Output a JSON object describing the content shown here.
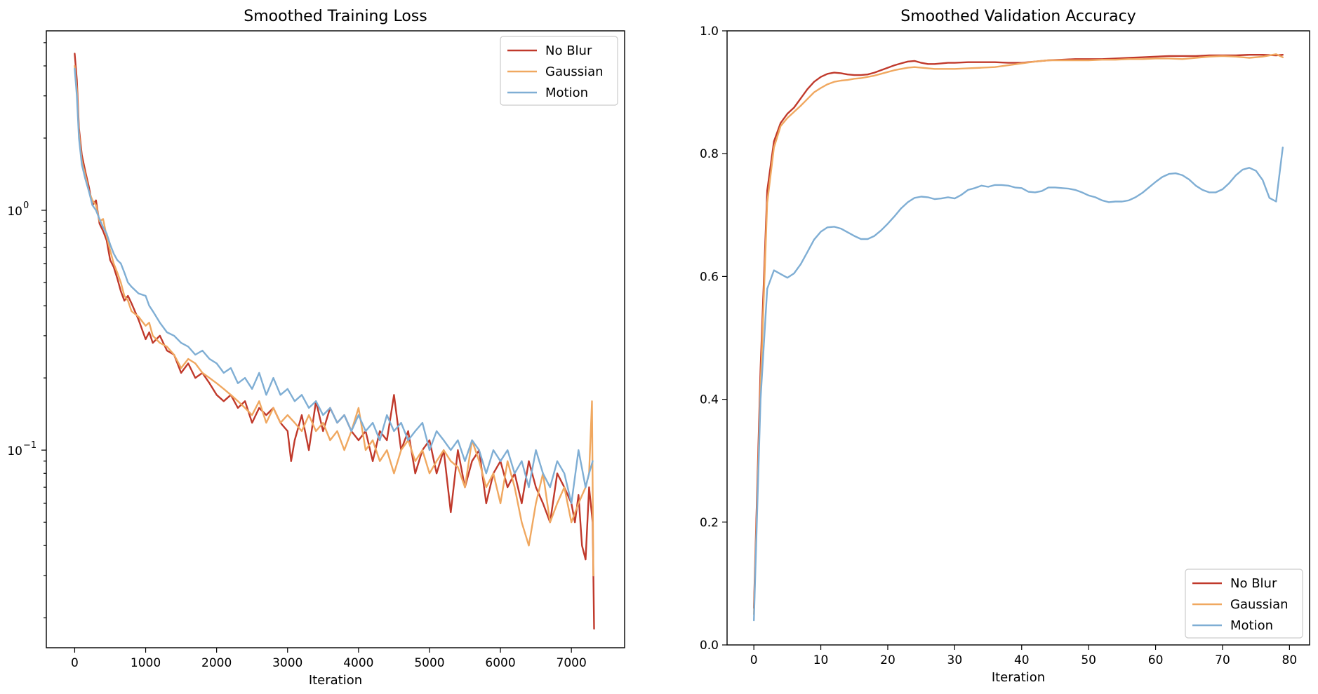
{
  "chart_data": [
    {
      "type": "line",
      "title": "Smoothed Training Loss",
      "xlabel": "Iteration",
      "ylabel": "",
      "xlim": [
        -400,
        7750
      ],
      "ylim": [
        0.015,
        5.6
      ],
      "yscale": "log",
      "grid": false,
      "legend_loc": "upper right",
      "xticks": [
        0,
        1000,
        2000,
        3000,
        4000,
        5000,
        6000,
        7000
      ],
      "xtick_labels": [
        "0",
        "1000",
        "2000",
        "3000",
        "4000",
        "5000",
        "6000",
        "7000"
      ],
      "yticks": [
        {
          "value": 1,
          "base": "10",
          "exp": "0"
        },
        {
          "value": 0.1,
          "base": "10",
          "exp": "−1"
        }
      ],
      "series": [
        {
          "name": "No Blur",
          "color": "#c0392b",
          "x": [
            0,
            30,
            60,
            100,
            150,
            200,
            250,
            300,
            350,
            400,
            450,
            500,
            550,
            600,
            650,
            700,
            750,
            800,
            900,
            1000,
            1050,
            1100,
            1200,
            1300,
            1400,
            1500,
            1600,
            1700,
            1800,
            1900,
            2000,
            2100,
            2200,
            2300,
            2400,
            2500,
            2600,
            2700,
            2800,
            2900,
            3000,
            3050,
            3100,
            3200,
            3300,
            3400,
            3500,
            3600,
            3700,
            3800,
            3900,
            4000,
            4100,
            4200,
            4300,
            4400,
            4500,
            4600,
            4700,
            4800,
            4900,
            5000,
            5100,
            5200,
            5300,
            5400,
            5500,
            5600,
            5700,
            5800,
            5900,
            6000,
            6100,
            6200,
            6300,
            6400,
            6500,
            6600,
            6700,
            6800,
            6900,
            7000,
            7050,
            7100,
            7150,
            7200,
            7250,
            7300,
            7320
          ],
          "y": [
            4.5,
            3.5,
            2.2,
            1.7,
            1.45,
            1.25,
            1.05,
            1.1,
            0.88,
            0.82,
            0.75,
            0.62,
            0.58,
            0.52,
            0.46,
            0.42,
            0.44,
            0.41,
            0.35,
            0.29,
            0.31,
            0.28,
            0.3,
            0.26,
            0.25,
            0.21,
            0.23,
            0.2,
            0.21,
            0.19,
            0.17,
            0.16,
            0.17,
            0.15,
            0.16,
            0.13,
            0.15,
            0.14,
            0.15,
            0.13,
            0.12,
            0.09,
            0.11,
            0.14,
            0.1,
            0.16,
            0.12,
            0.15,
            0.13,
            0.14,
            0.12,
            0.11,
            0.12,
            0.09,
            0.12,
            0.11,
            0.17,
            0.1,
            0.12,
            0.08,
            0.1,
            0.11,
            0.08,
            0.1,
            0.055,
            0.1,
            0.07,
            0.09,
            0.1,
            0.06,
            0.08,
            0.09,
            0.07,
            0.08,
            0.06,
            0.09,
            0.07,
            0.06,
            0.05,
            0.08,
            0.07,
            0.06,
            0.05,
            0.065,
            0.04,
            0.035,
            0.07,
            0.05,
            0.018
          ]
        },
        {
          "name": "Gaussian",
          "color": "#f0a860",
          "x": [
            0,
            30,
            60,
            100,
            150,
            200,
            250,
            300,
            350,
            400,
            450,
            500,
            550,
            600,
            650,
            700,
            750,
            800,
            900,
            1000,
            1050,
            1100,
            1200,
            1300,
            1400,
            1500,
            1600,
            1700,
            1800,
            1900,
            2000,
            2100,
            2200,
            2300,
            2400,
            2500,
            2600,
            2700,
            2800,
            2900,
            3000,
            3100,
            3200,
            3300,
            3400,
            3500,
            3600,
            3700,
            3800,
            3900,
            4000,
            4100,
            4200,
            4300,
            4400,
            4500,
            4600,
            4700,
            4800,
            4900,
            5000,
            5100,
            5200,
            5300,
            5400,
            5500,
            5600,
            5700,
            5800,
            5900,
            6000,
            6100,
            6200,
            6300,
            6400,
            6500,
            6600,
            6700,
            6800,
            6900,
            7000,
            7100,
            7200,
            7250,
            7290,
            7310
          ],
          "y": [
            4.0,
            3.2,
            2.1,
            1.6,
            1.4,
            1.2,
            1.1,
            1.05,
            0.9,
            0.92,
            0.78,
            0.68,
            0.6,
            0.55,
            0.5,
            0.44,
            0.42,
            0.38,
            0.36,
            0.33,
            0.34,
            0.3,
            0.28,
            0.27,
            0.25,
            0.22,
            0.24,
            0.23,
            0.21,
            0.2,
            0.19,
            0.18,
            0.17,
            0.16,
            0.15,
            0.14,
            0.16,
            0.13,
            0.15,
            0.13,
            0.14,
            0.13,
            0.12,
            0.14,
            0.12,
            0.13,
            0.11,
            0.12,
            0.1,
            0.12,
            0.15,
            0.1,
            0.11,
            0.09,
            0.1,
            0.08,
            0.1,
            0.11,
            0.09,
            0.1,
            0.08,
            0.09,
            0.1,
            0.09,
            0.085,
            0.07,
            0.11,
            0.09,
            0.07,
            0.08,
            0.06,
            0.09,
            0.07,
            0.05,
            0.04,
            0.06,
            0.08,
            0.05,
            0.06,
            0.07,
            0.05,
            0.06,
            0.07,
            0.08,
            0.16,
            0.03
          ]
        },
        {
          "name": "Motion",
          "color": "#7faed4",
          "x": [
            0,
            30,
            60,
            100,
            150,
            200,
            250,
            300,
            350,
            400,
            450,
            500,
            550,
            600,
            650,
            700,
            750,
            800,
            900,
            1000,
            1050,
            1100,
            1200,
            1300,
            1400,
            1500,
            1600,
            1700,
            1800,
            1900,
            2000,
            2100,
            2200,
            2300,
            2400,
            2500,
            2600,
            2700,
            2800,
            2900,
            3000,
            3100,
            3200,
            3300,
            3400,
            3500,
            3600,
            3700,
            3800,
            3900,
            4000,
            4100,
            4200,
            4300,
            4400,
            4500,
            4600,
            4700,
            4800,
            4900,
            5000,
            5100,
            5200,
            5300,
            5400,
            5500,
            5600,
            5700,
            5800,
            5900,
            6000,
            6100,
            6200,
            6300,
            6400,
            6500,
            6600,
            6700,
            6800,
            6900,
            7000,
            7100,
            7200,
            7250,
            7300
          ],
          "y": [
            3.9,
            3.0,
            2.0,
            1.55,
            1.35,
            1.2,
            1.05,
            1.0,
            0.92,
            0.85,
            0.8,
            0.72,
            0.66,
            0.62,
            0.6,
            0.55,
            0.5,
            0.48,
            0.45,
            0.44,
            0.4,
            0.38,
            0.34,
            0.31,
            0.3,
            0.28,
            0.27,
            0.25,
            0.26,
            0.24,
            0.23,
            0.21,
            0.22,
            0.19,
            0.2,
            0.18,
            0.21,
            0.17,
            0.2,
            0.17,
            0.18,
            0.16,
            0.17,
            0.15,
            0.16,
            0.14,
            0.15,
            0.13,
            0.14,
            0.12,
            0.14,
            0.12,
            0.13,
            0.11,
            0.14,
            0.12,
            0.13,
            0.11,
            0.12,
            0.13,
            0.1,
            0.12,
            0.11,
            0.1,
            0.11,
            0.09,
            0.11,
            0.1,
            0.08,
            0.1,
            0.09,
            0.1,
            0.08,
            0.09,
            0.07,
            0.1,
            0.08,
            0.07,
            0.09,
            0.08,
            0.06,
            0.1,
            0.07,
            0.08,
            0.09
          ]
        }
      ]
    },
    {
      "type": "line",
      "title": "Smoothed Validation Accuracy",
      "xlabel": "Iteration",
      "ylabel": "",
      "xlim": [
        -4,
        83
      ],
      "ylim": [
        0.0,
        1.0
      ],
      "yscale": "linear",
      "grid": false,
      "legend_loc": "lower right",
      "xticks": [
        0,
        10,
        20,
        30,
        40,
        50,
        60,
        70,
        80
      ],
      "xtick_labels": [
        "0",
        "10",
        "20",
        "30",
        "40",
        "50",
        "60",
        "70",
        "80"
      ],
      "yticks": [
        0.0,
        0.2,
        0.4,
        0.6,
        0.8,
        1.0
      ],
      "ytick_labels": [
        "0.0",
        "0.2",
        "0.4",
        "0.6",
        "0.8",
        "1.0"
      ],
      "series": [
        {
          "name": "No Blur",
          "color": "#c0392b",
          "x": [
            0,
            1,
            2,
            3,
            4,
            5,
            6,
            7,
            8,
            9,
            10,
            11,
            12,
            13,
            14,
            15,
            16,
            17,
            18,
            19,
            20,
            21,
            22,
            23,
            24,
            25,
            26,
            27,
            28,
            29,
            30,
            32,
            34,
            36,
            38,
            40,
            42,
            44,
            46,
            48,
            50,
            52,
            54,
            56,
            58,
            60,
            62,
            64,
            66,
            68,
            70,
            72,
            74,
            76,
            78,
            79
          ],
          "y": [
            0.06,
            0.45,
            0.74,
            0.82,
            0.85,
            0.865,
            0.875,
            0.89,
            0.905,
            0.917,
            0.925,
            0.93,
            0.932,
            0.931,
            0.929,
            0.928,
            0.928,
            0.929,
            0.932,
            0.936,
            0.94,
            0.944,
            0.947,
            0.95,
            0.951,
            0.948,
            0.946,
            0.946,
            0.947,
            0.948,
            0.948,
            0.949,
            0.949,
            0.949,
            0.948,
            0.948,
            0.95,
            0.952,
            0.953,
            0.954,
            0.954,
            0.954,
            0.955,
            0.956,
            0.957,
            0.958,
            0.959,
            0.959,
            0.959,
            0.96,
            0.96,
            0.96,
            0.961,
            0.961,
            0.96,
            0.961
          ]
        },
        {
          "name": "Gaussian",
          "color": "#f0a860",
          "x": [
            0,
            1,
            2,
            3,
            4,
            5,
            6,
            7,
            8,
            9,
            10,
            11,
            12,
            13,
            14,
            15,
            16,
            17,
            18,
            19,
            20,
            21,
            22,
            23,
            24,
            25,
            26,
            27,
            28,
            29,
            30,
            32,
            34,
            36,
            38,
            40,
            42,
            44,
            46,
            48,
            50,
            52,
            54,
            56,
            58,
            60,
            62,
            64,
            66,
            68,
            70,
            72,
            74,
            76,
            78,
            79
          ],
          "y": [
            0.05,
            0.42,
            0.72,
            0.81,
            0.845,
            0.858,
            0.868,
            0.878,
            0.889,
            0.9,
            0.907,
            0.913,
            0.917,
            0.919,
            0.92,
            0.922,
            0.923,
            0.925,
            0.927,
            0.93,
            0.933,
            0.936,
            0.938,
            0.94,
            0.941,
            0.94,
            0.939,
            0.938,
            0.938,
            0.938,
            0.938,
            0.939,
            0.94,
            0.941,
            0.944,
            0.947,
            0.95,
            0.952,
            0.952,
            0.952,
            0.952,
            0.953,
            0.953,
            0.954,
            0.954,
            0.955,
            0.955,
            0.954,
            0.956,
            0.958,
            0.959,
            0.958,
            0.956,
            0.958,
            0.962,
            0.957
          ]
        },
        {
          "name": "Motion",
          "color": "#7faed4",
          "x": [
            0,
            1,
            2,
            3,
            4,
            5,
            6,
            7,
            8,
            9,
            10,
            11,
            12,
            13,
            14,
            15,
            16,
            17,
            18,
            19,
            20,
            21,
            22,
            23,
            24,
            25,
            26,
            27,
            28,
            29,
            30,
            31,
            32,
            33,
            34,
            35,
            36,
            37,
            38,
            39,
            40,
            41,
            42,
            43,
            44,
            45,
            46,
            47,
            48,
            49,
            50,
            51,
            52,
            53,
            54,
            55,
            56,
            57,
            58,
            59,
            60,
            61,
            62,
            63,
            64,
            65,
            66,
            67,
            68,
            69,
            70,
            71,
            72,
            73,
            74,
            75,
            76,
            77,
            78,
            79
          ],
          "y": [
            0.04,
            0.4,
            0.58,
            0.61,
            0.604,
            0.598,
            0.605,
            0.62,
            0.64,
            0.66,
            0.673,
            0.68,
            0.681,
            0.678,
            0.672,
            0.666,
            0.661,
            0.661,
            0.666,
            0.675,
            0.686,
            0.698,
            0.711,
            0.721,
            0.728,
            0.73,
            0.729,
            0.726,
            0.727,
            0.729,
            0.727,
            0.733,
            0.741,
            0.744,
            0.748,
            0.746,
            0.749,
            0.749,
            0.748,
            0.745,
            0.744,
            0.738,
            0.737,
            0.739,
            0.745,
            0.745,
            0.744,
            0.743,
            0.741,
            0.737,
            0.732,
            0.729,
            0.724,
            0.721,
            0.722,
            0.722,
            0.724,
            0.729,
            0.736,
            0.745,
            0.754,
            0.762,
            0.767,
            0.768,
            0.765,
            0.758,
            0.748,
            0.741,
            0.737,
            0.737,
            0.742,
            0.752,
            0.765,
            0.774,
            0.777,
            0.772,
            0.757,
            0.728,
            0.722,
            0.81
          ]
        }
      ]
    }
  ]
}
